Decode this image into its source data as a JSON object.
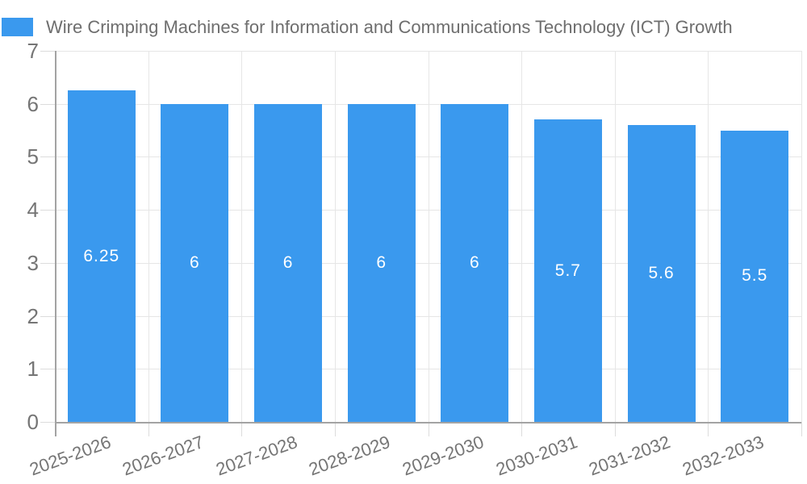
{
  "chart_data": {
    "type": "bar",
    "title": "Wire Crimping Machines for Information and Communications Technology (ICT) Growth",
    "categories": [
      "2025-2026",
      "2026-2027",
      "2027-2028",
      "2028-2029",
      "2029-2030",
      "2030-2031",
      "2031-2032",
      "2032-2033"
    ],
    "values": [
      6.25,
      6,
      6,
      6,
      6,
      5.7,
      5.6,
      5.5
    ],
    "data_labels": [
      "6.25",
      "6",
      "6",
      "6",
      "6",
      "5.7",
      "5.6",
      "5.5"
    ],
    "xlabel": "",
    "ylabel": "",
    "ylim": [
      0,
      7
    ],
    "yticks": [
      0,
      1,
      2,
      3,
      4,
      5,
      6,
      7
    ],
    "grid": true,
    "legend_position": "top-left",
    "colors": {
      "bar": "#3A99EE",
      "grid": "#E6E6E6",
      "axis": "#A3A3A3",
      "tick": "#DCDCDC",
      "axis_text": "#757575",
      "title_text": "#6E6E6E",
      "value_text": "#FFFFFF",
      "background": "#FFFFFF"
    }
  }
}
